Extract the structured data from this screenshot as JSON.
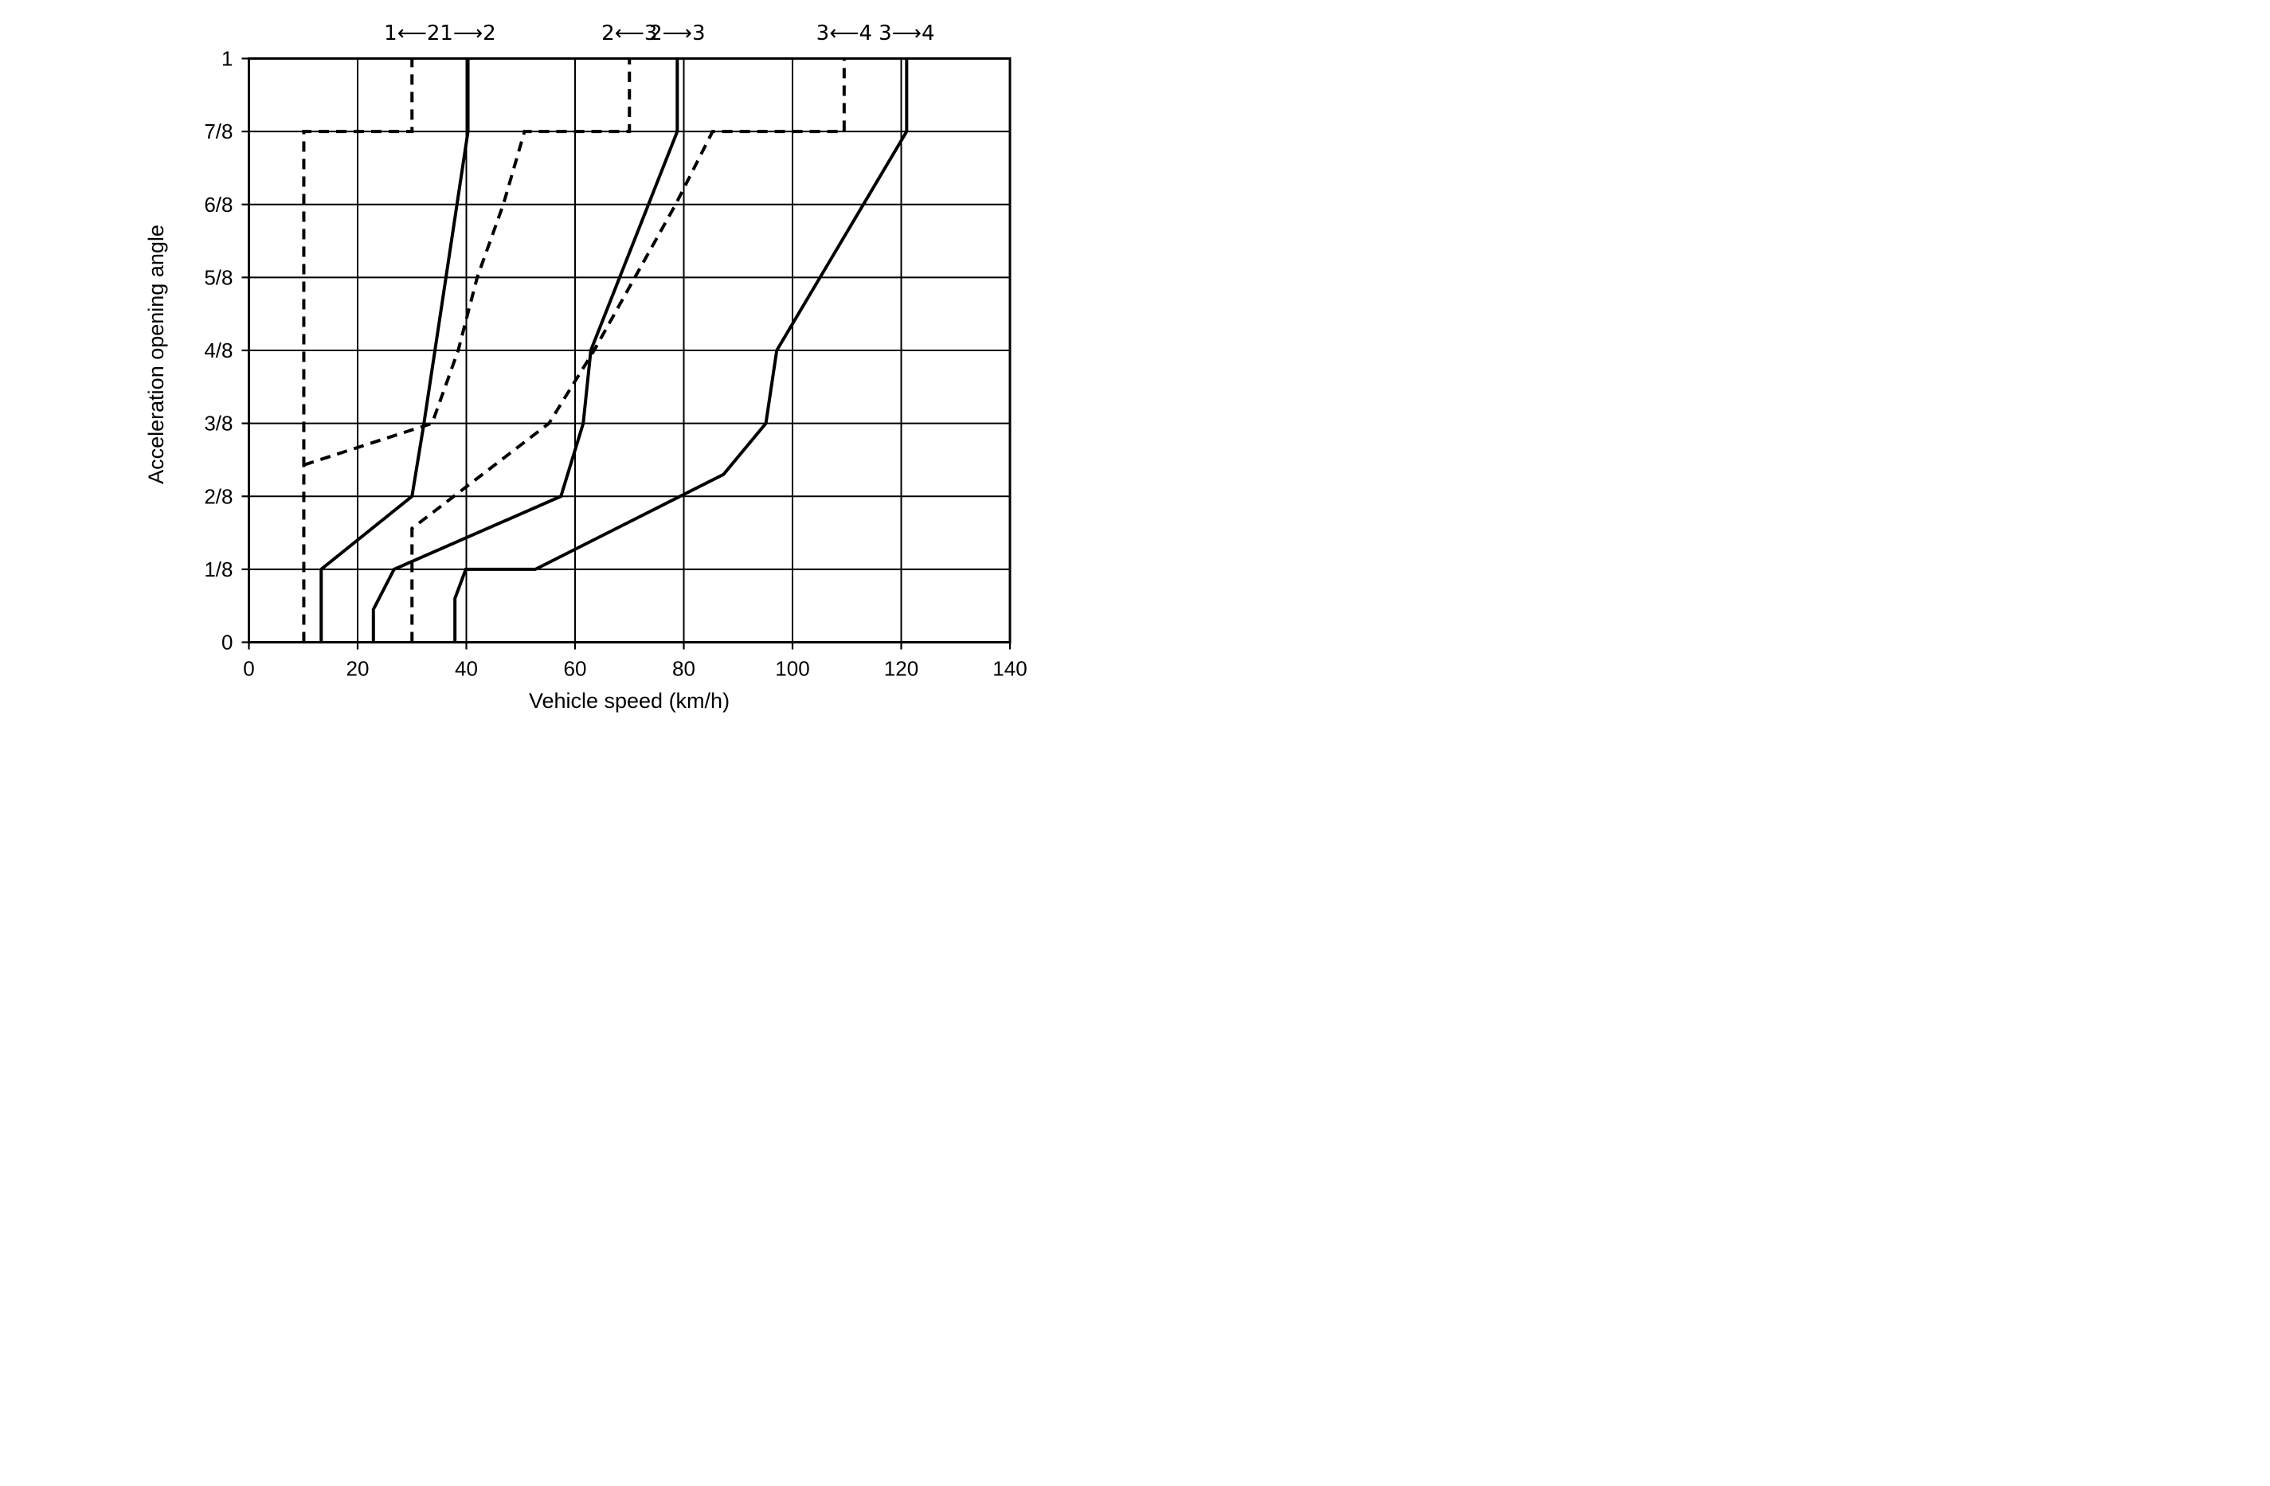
{
  "figure": {
    "background": "#ffffff",
    "line_color": "#000000",
    "grid": true
  },
  "chart_data": {
    "type": "line",
    "title": "",
    "xlabel": "Vehicle speed (km/h)",
    "ylabel": "Acceleration opening angle",
    "xlim": [
      0,
      140
    ],
    "x_ticks": [
      0,
      20,
      40,
      60,
      80,
      100,
      120,
      140
    ],
    "y_ticks_eighths": [
      0,
      1,
      2,
      3,
      4,
      5,
      6,
      7,
      8
    ],
    "y_tick_labels": [
      "0",
      "1/8",
      "2/8",
      "3/8",
      "4/8",
      "5/8",
      "6/8",
      "7/8",
      "1"
    ],
    "ylim_eighths": [
      0,
      8
    ],
    "legend_position": "top-labels",
    "series": [
      {
        "name": "downshift-2-1",
        "label": "1⟵2",
        "style": "dashed",
        "points_kmh_vs_eighths": [
          [
            10.1,
            0
          ],
          [
            10.1,
            7
          ],
          [
            30,
            7
          ],
          [
            30,
            8
          ]
        ]
      },
      {
        "name": "upshift-1-2",
        "label": "1⟶2",
        "style": "solid",
        "points_kmh_vs_eighths": [
          [
            13.3,
            0
          ],
          [
            13.3,
            1
          ],
          [
            30,
            2
          ],
          [
            32.2,
            3
          ],
          [
            40.3,
            7
          ],
          [
            40.3,
            8
          ]
        ]
      },
      {
        "name": "downshift-3-2",
        "label": "2⟵3",
        "style": "dashed",
        "points_kmh_vs_eighths": [
          [
            10.1,
            2.43
          ],
          [
            33.7,
            3
          ],
          [
            38.5,
            4
          ],
          [
            42.0,
            5
          ],
          [
            46.8,
            6
          ],
          [
            50.7,
            7
          ],
          [
            70,
            7
          ],
          [
            70,
            8
          ]
        ]
      },
      {
        "name": "upshift-2-3",
        "label": "2⟶3",
        "style": "solid",
        "points_kmh_vs_eighths": [
          [
            22.9,
            0
          ],
          [
            22.9,
            0.45
          ],
          [
            26.7,
            1
          ],
          [
            57.4,
            2
          ],
          [
            61.5,
            3
          ],
          [
            62.9,
            4
          ],
          [
            78.8,
            7
          ],
          [
            78.8,
            8
          ]
        ]
      },
      {
        "name": "downshift-4-3",
        "label": "3⟵4",
        "style": "dashed",
        "points_kmh_vs_eighths": [
          [
            30,
            0
          ],
          [
            30,
            1.56
          ],
          [
            55.2,
            3
          ],
          [
            63.5,
            4
          ],
          [
            71.0,
            5
          ],
          [
            78.5,
            6
          ],
          [
            85.3,
            7
          ],
          [
            109.5,
            7
          ],
          [
            109.5,
            8
          ]
        ]
      },
      {
        "name": "upshift-3-4",
        "label": "3⟶4",
        "style": "solid",
        "points_kmh_vs_eighths": [
          [
            37.9,
            0
          ],
          [
            37.9,
            0.6
          ],
          [
            39.9,
            1
          ],
          [
            52.7,
            1
          ],
          [
            87.3,
            2.3
          ],
          [
            95.1,
            3
          ],
          [
            97.1,
            4
          ],
          [
            121,
            7
          ],
          [
            121,
            8
          ]
        ]
      }
    ],
    "top_labels": [
      {
        "name": "gear-label-downshift-2-1",
        "text": "1⟵2",
        "x_kmh": 30
      },
      {
        "name": "gear-label-upshift-1-2",
        "text": "1⟶2",
        "x_kmh": 40.3
      },
      {
        "name": "gear-label-downshift-3-2",
        "text": "2⟵3",
        "x_kmh": 70
      },
      {
        "name": "gear-label-upshift-2-3",
        "text": "2⟶3",
        "x_kmh": 78.8
      },
      {
        "name": "gear-label-downshift-4-3",
        "text": "3⟵4",
        "x_kmh": 109.5
      },
      {
        "name": "gear-label-upshift-3-4",
        "text": "3⟶4",
        "x_kmh": 121
      }
    ]
  }
}
